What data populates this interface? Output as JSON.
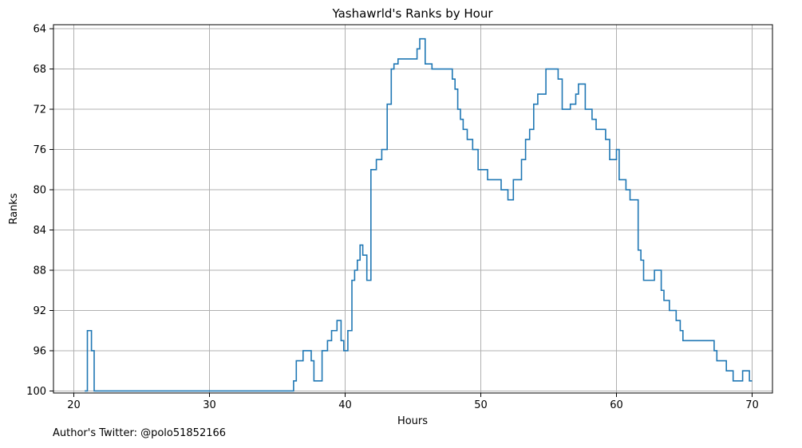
{
  "chart_data": {
    "type": "line",
    "title": "Yashawrld's Ranks by Hour",
    "xlabel": "Hours",
    "ylabel": "Ranks",
    "xlim": [
      18.5,
      71.5
    ],
    "ylim": [
      100.2,
      63.6
    ],
    "y_inverted": true,
    "xticks": [
      20,
      30,
      40,
      50,
      60,
      70
    ],
    "yticks": [
      64,
      68,
      72,
      76,
      80,
      84,
      88,
      92,
      96,
      100
    ],
    "grid": true,
    "step": "post",
    "line_color": "#1f77b4",
    "series": [
      {
        "x": [
          20.8,
          21.0,
          21.3,
          21.5,
          25.0,
          30.0,
          35.0,
          36.2,
          36.4,
          36.9,
          37.5,
          37.7,
          38.3,
          38.7,
          39.0,
          39.4,
          39.7,
          39.9,
          40.2,
          40.5,
          40.7,
          40.9,
          41.1,
          41.3,
          41.6,
          41.9,
          42.3,
          42.7,
          43.1,
          43.4,
          43.6,
          43.9,
          44.4,
          45.3,
          45.5,
          45.9,
          46.4,
          47.9,
          48.1,
          48.3,
          48.5,
          48.7,
          49.0,
          49.4,
          49.8,
          50.0,
          50.5,
          51.5,
          52.0,
          52.4,
          53.0,
          53.3,
          53.6,
          53.9,
          54.2,
          54.8,
          55.7,
          56.0,
          56.6,
          57.0,
          57.2,
          57.7,
          58.2,
          58.5,
          58.8,
          59.2,
          59.5,
          60.0,
          60.2,
          60.7,
          61.0,
          61.6,
          61.8,
          62.0,
          62.8,
          63.3,
          63.5,
          63.9,
          64.4,
          64.7,
          64.9,
          67.2,
          67.4,
          68.1,
          68.6,
          69.3,
          69.8,
          70.0
        ],
        "y": [
          100,
          94,
          96,
          100,
          100,
          100,
          100,
          99,
          97,
          96,
          97,
          99,
          96,
          95,
          94,
          93,
          95,
          96,
          94,
          89,
          88,
          87,
          85.5,
          86.5,
          89,
          78,
          77,
          76,
          71.5,
          68,
          67.5,
          67,
          67,
          66,
          65,
          67.5,
          68,
          69,
          70,
          72,
          73,
          74,
          75,
          76,
          78,
          78,
          79,
          80,
          81,
          79,
          77,
          75,
          74,
          71.5,
          70.5,
          68,
          69,
          72,
          71.5,
          70.5,
          69.5,
          72,
          73,
          74,
          74,
          75,
          77,
          76,
          79,
          80,
          81,
          86,
          87,
          89,
          88,
          90,
          91,
          92,
          93,
          94,
          95,
          96,
          97,
          98,
          99,
          98,
          99,
          99
        ]
      }
    ]
  },
  "footer": {
    "author_note": "Author's Twitter: @polo51852166"
  }
}
